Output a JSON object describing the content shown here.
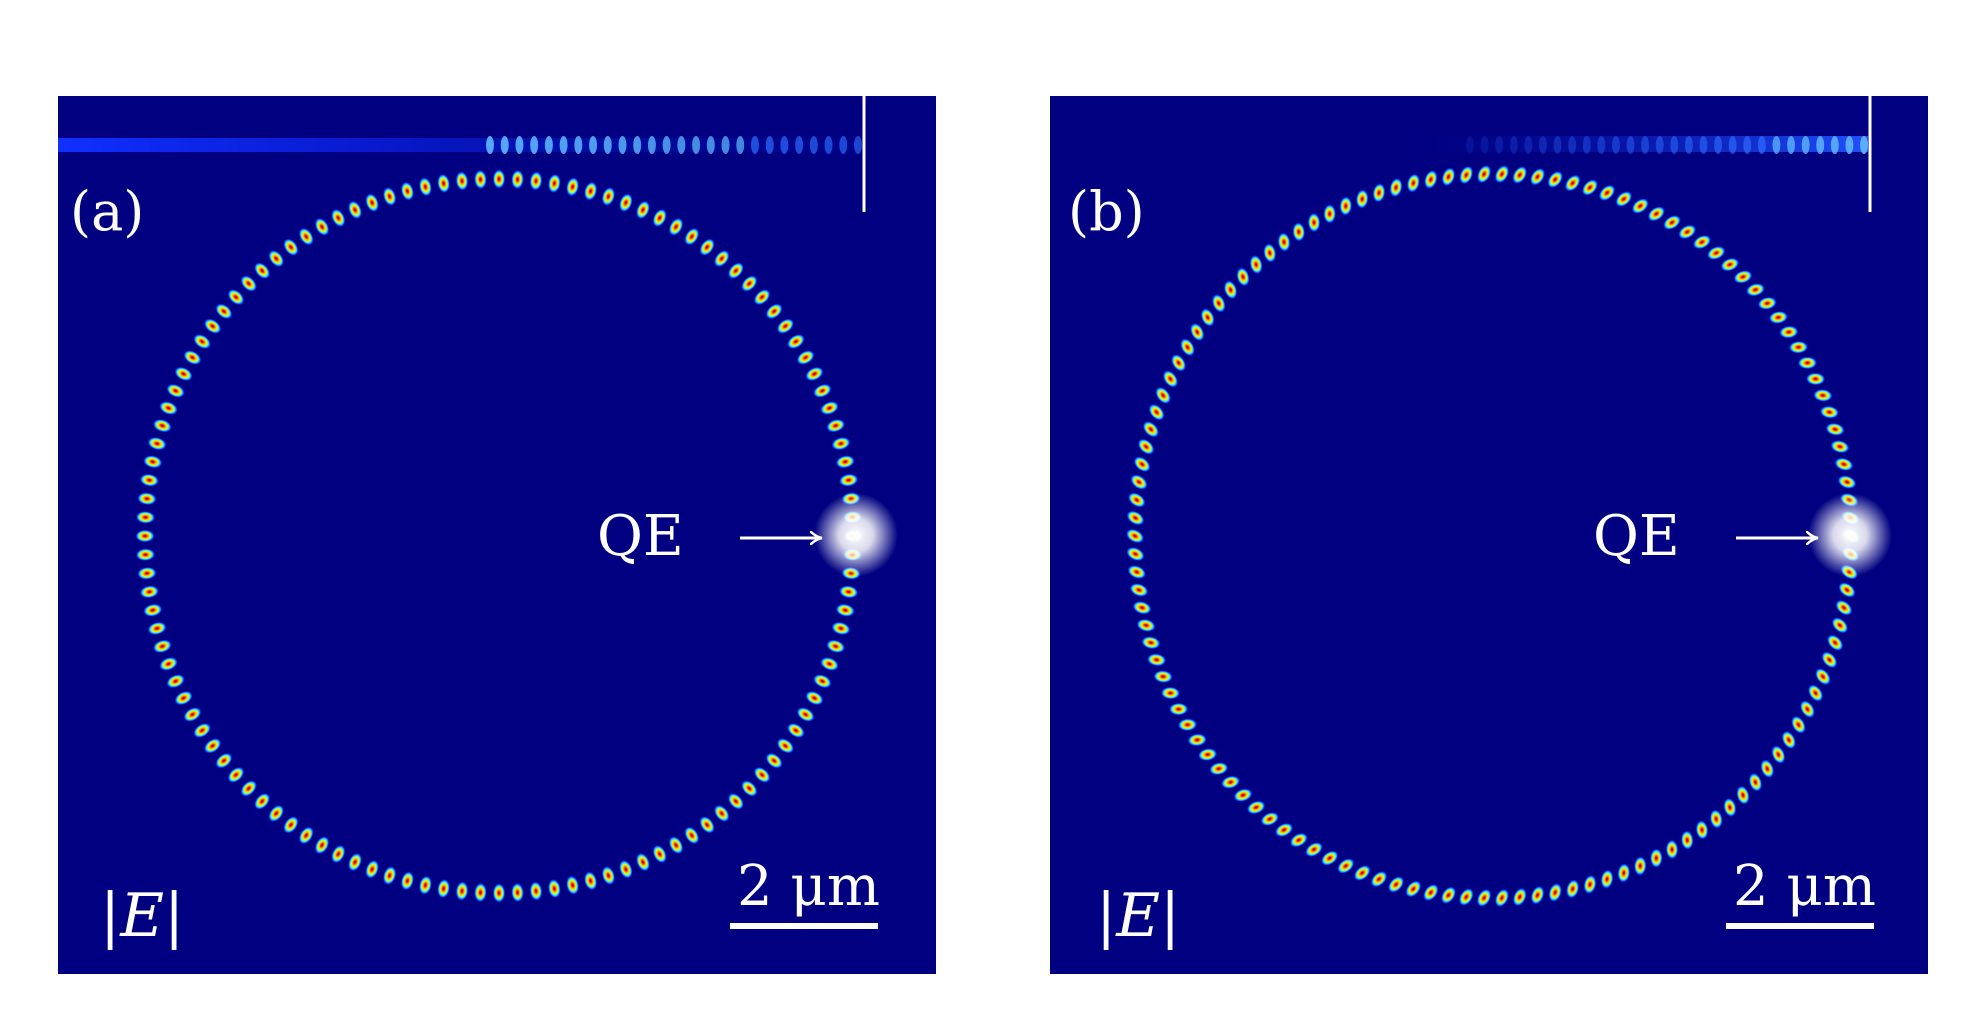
{
  "figure": {
    "colors": {
      "background": "#000080",
      "ring_peak": "#b00000",
      "annotation": "#ffffff"
    },
    "panels": [
      {
        "id": "a",
        "label": "(a)",
        "qe_label": "QE",
        "scale_label": "2 μm",
        "field_label": "|E|",
        "lobe_count": 120,
        "lobe_orientation": "radial",
        "waveguide_field_fade": "bright-left-to-faint-right"
      },
      {
        "id": "b",
        "label": "(b)",
        "qe_label": "QE",
        "scale_label": "2 μm",
        "field_label": "|E|",
        "lobe_count": 126,
        "lobe_orientation": "tilted",
        "waveguide_field_fade": "faint-left-to-bright-right"
      }
    ]
  }
}
